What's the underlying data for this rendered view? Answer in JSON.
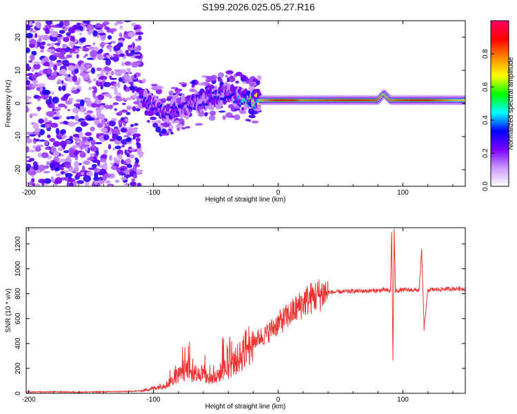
{
  "title": "S199.2026.025.05.27.R16",
  "chart_data": [
    {
      "type": "heatmap",
      "title": "S199.2026.025.05.27.R16",
      "xlabel": "Height of straight line (km)",
      "ylabel": "Frequency (Hz)",
      "xlim": [
        -202,
        150
      ],
      "ylim": [
        -25,
        25
      ],
      "xticks": [
        -200,
        -100,
        0,
        100
      ],
      "yticks": [
        -20,
        -10,
        0,
        10,
        20
      ],
      "colorbar": {
        "label": "Normalized spectral amplitude",
        "range": [
          0,
          1
        ],
        "ticks": [
          0.0,
          0.2,
          0.4,
          0.6,
          0.8
        ],
        "tick_labels": [
          "0.0",
          "0.2",
          "0.4",
          "0.6",
          "0.8"
        ],
        "colors": [
          "#ffffff",
          "#cc99ff",
          "#7a00ff",
          "#0000ff",
          "#00ffff",
          "#00ff00",
          "#ffff00",
          "#ff8800",
          "#ff0000",
          "#ff0066"
        ]
      },
      "ridge": {
        "x": [
          -110,
          -100,
          -90,
          -80,
          -70,
          -60,
          -50,
          -40,
          -30,
          -20,
          -10,
          0,
          10,
          20,
          40,
          60,
          80,
          85,
          90,
          100,
          110,
          120,
          150
        ],
        "freq": [
          2,
          -1,
          -3,
          -1,
          0,
          1,
          2,
          3,
          2,
          1,
          1,
          1,
          1,
          1,
          1,
          1,
          1,
          3,
          1,
          1,
          1,
          1,
          1
        ],
        "amplitude": [
          0.35,
          0.3,
          0.35,
          0.3,
          0.3,
          0.3,
          0.35,
          0.3,
          0.4,
          0.6,
          0.8,
          0.9,
          0.95,
          0.8,
          0.85,
          0.9,
          0.85,
          0.7,
          0.8,
          0.85,
          0.9,
          0.9,
          0.7
        ]
      }
    },
    {
      "type": "line",
      "xlabel": "Height of straight line (km)",
      "ylabel": "SNR (10 * v/v)",
      "xlim": [
        -202,
        150
      ],
      "ylim": [
        0,
        1330
      ],
      "xticks": [
        -200,
        -100,
        0,
        100
      ],
      "yticks": [
        0,
        200,
        400,
        600,
        800,
        1000,
        1200
      ],
      "series": [
        {
          "name": "SNR",
          "color": "#ee3333",
          "x": [
            -200,
            -180,
            -160,
            -140,
            -120,
            -110,
            -100,
            -95,
            -90,
            -85,
            -80,
            -75,
            -72,
            -70,
            -65,
            -60,
            -55,
            -50,
            -45,
            -40,
            -35,
            -30,
            -25,
            -20,
            -15,
            -10,
            -5,
            0,
            5,
            10,
            15,
            20,
            25,
            30,
            35,
            40,
            50,
            60,
            70,
            80,
            85,
            90,
            91,
            92,
            93,
            94,
            95,
            100,
            105,
            110,
            113,
            115,
            117,
            120,
            130,
            140,
            150
          ],
          "y": [
            10,
            12,
            10,
            12,
            15,
            20,
            40,
            55,
            70,
            100,
            150,
            160,
            220,
            150,
            170,
            150,
            110,
            120,
            190,
            200,
            250,
            300,
            380,
            420,
            450,
            470,
            520,
            560,
            600,
            640,
            680,
            730,
            760,
            780,
            800,
            810,
            815,
            820,
            822,
            825,
            830,
            820,
            1310,
            265,
            1310,
            820,
            825,
            830,
            830,
            830,
            830,
            1150,
            520,
            830,
            835,
            840,
            840
          ]
        }
      ]
    }
  ]
}
